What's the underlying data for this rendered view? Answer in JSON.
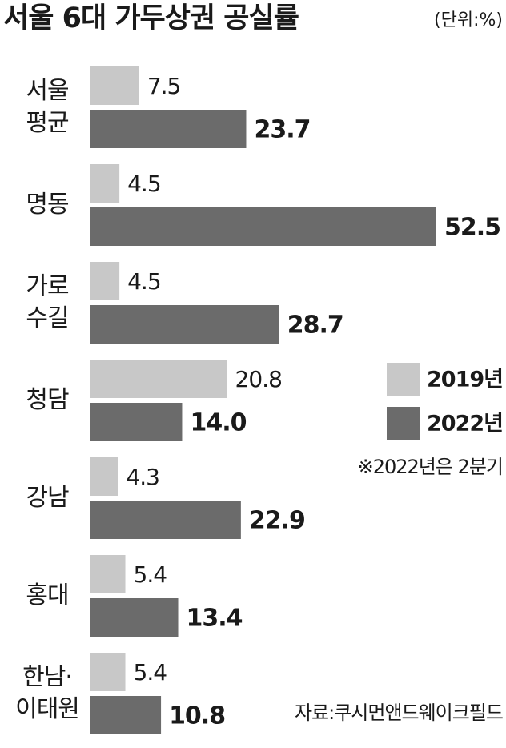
{
  "chart_data": {
    "type": "bar",
    "orientation": "horizontal",
    "title": "서울 6대 가두상권 공실률",
    "unit": "(단위:%)",
    "note": "※2022년은 2분기",
    "source": "자료:쿠시먼앤드웨이크필드",
    "categories": [
      "서울\n평균",
      "명동",
      "가로\n수길",
      "청담",
      "강남",
      "홍대",
      "한남·\n이태원"
    ],
    "series": [
      {
        "name": "2019년",
        "color": "#c8c8c8",
        "values": [
          7.5,
          4.5,
          4.5,
          20.8,
          4.3,
          5.4,
          5.4
        ],
        "value_labels": [
          "7.5",
          "4.5",
          "4.5",
          "20.8",
          "4.3",
          "5.4",
          "5.4"
        ]
      },
      {
        "name": "2022년",
        "color": "#6b6b6b",
        "values": [
          23.7,
          52.5,
          28.7,
          14.0,
          22.9,
          13.4,
          10.8
        ],
        "value_labels": [
          "23.7",
          "52.5",
          "28.7",
          "14.0",
          "22.9",
          "13.4",
          "10.8"
        ]
      }
    ],
    "legend": "right"
  }
}
